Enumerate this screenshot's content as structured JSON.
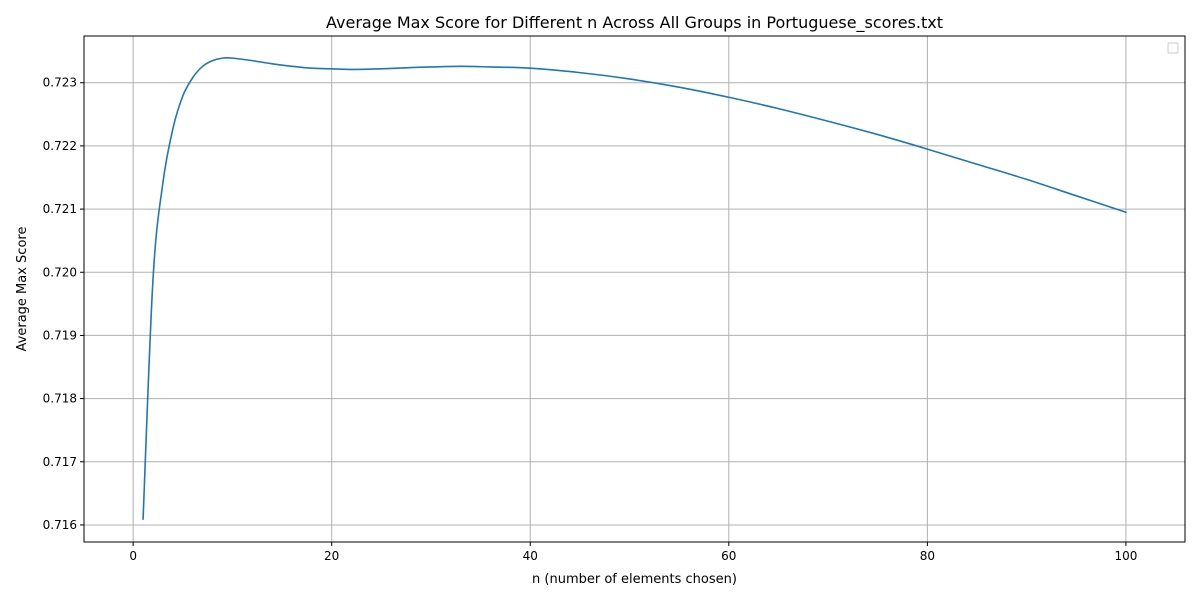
{
  "chart_data": {
    "type": "line",
    "title": "Average Max Score for Different n Across All Groups in Portuguese_scores.txt",
    "xlabel": "n (number of elements chosen)",
    "ylabel": "Average Max Score",
    "xlim": [
      -4.95,
      105.95
    ],
    "ylim": [
      0.71573,
      0.72374
    ],
    "xticks": [
      0,
      20,
      40,
      60,
      80,
      100
    ],
    "yticks": [
      0.716,
      0.717,
      0.718,
      0.719,
      0.72,
      0.721,
      0.722,
      0.723
    ],
    "ytick_labels": [
      "0.716",
      "0.717",
      "0.718",
      "0.719",
      "0.720",
      "0.721",
      "0.722",
      "0.723"
    ],
    "grid": true,
    "legend": "top-right (empty)",
    "colors": {
      "line": "#1f77b4",
      "grid": "#b0b0b0"
    },
    "series": [
      {
        "x": [
          1,
          2,
          3,
          4,
          5,
          6,
          7,
          8,
          9,
          10,
          12,
          14,
          16,
          18,
          20,
          22,
          25,
          28,
          30,
          33,
          36,
          40,
          45,
          50,
          55,
          60,
          65,
          70,
          75,
          80,
          85,
          90,
          95,
          100
        ],
        "y": [
          0.71609,
          0.71989,
          0.72142,
          0.72227,
          0.72279,
          0.72308,
          0.72326,
          0.72335,
          0.72339,
          0.72339,
          0.72335,
          0.7233,
          0.72326,
          0.72323,
          0.72322,
          0.72321,
          0.72322,
          0.72324,
          0.72325,
          0.72326,
          0.72325,
          0.72323,
          0.72316,
          0.72306,
          0.72293,
          0.72277,
          0.72259,
          0.72239,
          0.72218,
          0.72195,
          0.72171,
          0.72147,
          0.72121,
          0.72095
        ]
      }
    ]
  }
}
